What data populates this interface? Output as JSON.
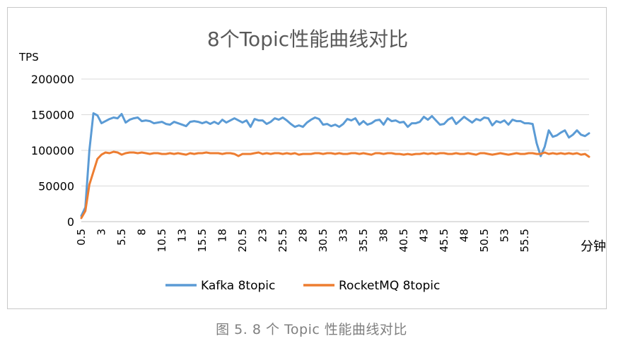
{
  "caption": "图 5. 8 个 Topic 性能曲线对比",
  "chart_data": {
    "type": "line",
    "title": "8个Topic性能曲线对比",
    "ylabel": "TPS",
    "xlabel": "分钟",
    "ylim": [
      0,
      200000
    ],
    "yticks": [
      0,
      50000,
      100000,
      150000,
      200000
    ],
    "ytick_labels": [
      "0",
      "50000",
      "100000",
      "150000",
      "200000"
    ],
    "x_start": 0.5,
    "x_step": 0.5,
    "xtick_step": 2.5,
    "xtick_labels": [
      "0.5",
      "3",
      "5.5",
      "8",
      "10.5",
      "13",
      "15.5",
      "18",
      "20.5",
      "23",
      "25.5",
      "28",
      "30.5",
      "33",
      "35.5",
      "38",
      "40.5",
      "43",
      "45.5",
      "48",
      "50.5",
      "53",
      "55.5"
    ],
    "grid": "horizontal",
    "legend_position": "bottom",
    "series": [
      {
        "name": "Kafka 8topic",
        "color": "#5b9bd5",
        "values": [
          8000,
          20000,
          100000,
          152000,
          149000,
          138000,
          141000,
          144000,
          146000,
          145000,
          151000,
          139000,
          143000,
          145000,
          146000,
          141000,
          142000,
          141000,
          138000,
          139000,
          140000,
          137000,
          136000,
          140000,
          138000,
          136000,
          134000,
          140000,
          141000,
          140000,
          138000,
          140000,
          137000,
          140000,
          137000,
          143000,
          139000,
          142000,
          145000,
          142000,
          139000,
          142000,
          133000,
          144000,
          142000,
          142000,
          137000,
          140000,
          145000,
          143000,
          146000,
          142000,
          137000,
          133000,
          135000,
          133000,
          139000,
          143000,
          146000,
          144000,
          136000,
          137000,
          134000,
          136000,
          133000,
          137000,
          144000,
          142000,
          145000,
          136000,
          141000,
          136000,
          138000,
          142000,
          143000,
          136000,
          145000,
          141000,
          142000,
          139000,
          140000,
          133000,
          138000,
          138000,
          140000,
          147000,
          143000,
          148000,
          142000,
          136000,
          137000,
          143000,
          146000,
          137000,
          142000,
          147000,
          143000,
          139000,
          144000,
          142000,
          146000,
          145000,
          135000,
          141000,
          139000,
          142000,
          136000,
          143000,
          141000,
          141000,
          138000,
          138000,
          137000,
          110000,
          92000,
          105000,
          128000,
          119000,
          121000,
          125000,
          128000,
          118000,
          122000,
          128000,
          122000,
          120000,
          124000
        ]
      },
      {
        "name": "RocketMQ 8topic",
        "color": "#ed7d31",
        "values": [
          5000,
          15000,
          52000,
          70000,
          88000,
          94000,
          97000,
          96000,
          98000,
          97000,
          94000,
          96000,
          97000,
          97000,
          96000,
          97000,
          96000,
          95000,
          96000,
          96000,
          95000,
          95000,
          96000,
          95000,
          96000,
          95000,
          94000,
          96000,
          95000,
          96000,
          96000,
          97000,
          96000,
          96000,
          96000,
          95000,
          96000,
          96000,
          95000,
          92000,
          95000,
          95000,
          95000,
          96000,
          97000,
          95000,
          96000,
          95000,
          96000,
          96000,
          95000,
          96000,
          95000,
          96000,
          94000,
          95000,
          95000,
          95000,
          96000,
          96000,
          95000,
          96000,
          96000,
          95000,
          96000,
          95000,
          95000,
          96000,
          96000,
          95000,
          96000,
          95000,
          94000,
          96000,
          96000,
          95000,
          96000,
          96000,
          95000,
          95000,
          94000,
          95000,
          94000,
          95000,
          95000,
          96000,
          95000,
          96000,
          95000,
          96000,
          96000,
          95000,
          95000,
          96000,
          95000,
          95000,
          96000,
          95000,
          94000,
          96000,
          96000,
          95000,
          94000,
          95000,
          96000,
          95000,
          94000,
          95000,
          96000,
          95000,
          95000,
          96000,
          96000,
          95000,
          95000,
          97000,
          95000,
          96000,
          95000,
          96000,
          95000,
          96000,
          95000,
          96000,
          94000,
          95000,
          91000
        ]
      }
    ]
  }
}
